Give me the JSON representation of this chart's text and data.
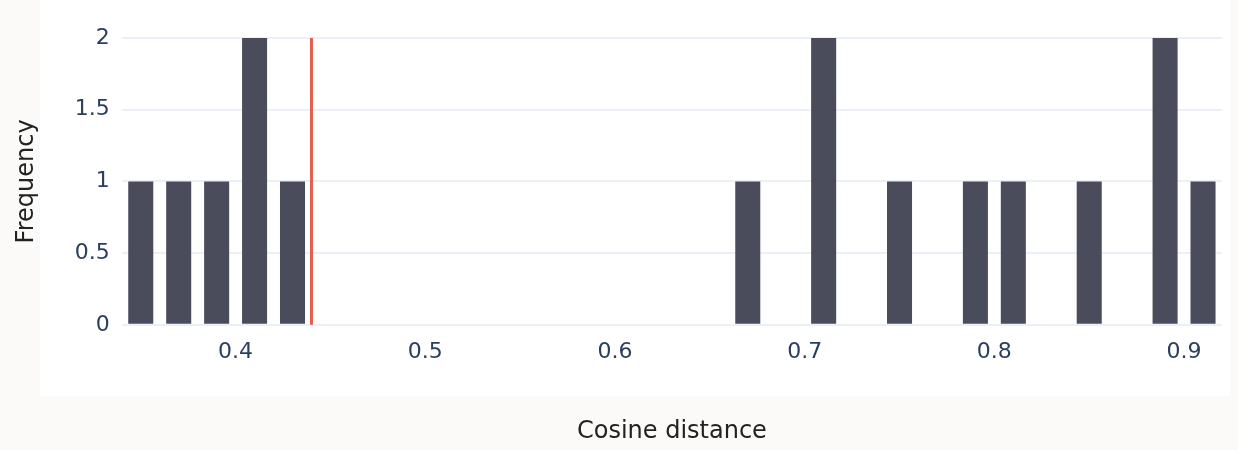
{
  "chart_data": {
    "type": "histogram",
    "xlabel": "Cosine distance",
    "ylabel": "Frequency",
    "bins": [
      0.34,
      0.36,
      0.38,
      0.4,
      0.42,
      0.44,
      0.46,
      0.48,
      0.5,
      0.52,
      0.54,
      0.56,
      0.58,
      0.6,
      0.62,
      0.64,
      0.66,
      0.68,
      0.7,
      0.72,
      0.74,
      0.76,
      0.78,
      0.8,
      0.82,
      0.84,
      0.86,
      0.88,
      0.9,
      0.92
    ],
    "values": [
      1,
      1,
      1,
      2,
      1,
      0,
      0,
      0,
      0,
      0,
      0,
      0,
      0,
      0,
      0,
      0,
      1,
      0,
      2,
      0,
      1,
      0,
      1,
      1,
      0,
      1,
      0,
      2,
      1
    ],
    "color": "#4a4c5c",
    "xlim": [
      0.34,
      0.92
    ],
    "xticks": [
      0.4,
      0.5,
      0.6,
      0.7,
      0.8,
      0.9
    ],
    "ylim": [
      0,
      2
    ],
    "yticks": [
      0,
      0.5,
      1,
      1.5,
      2
    ],
    "grid": "y",
    "ref_lines": [
      {
        "axis": "x",
        "value": 0.44,
        "color": "#e4604e"
      }
    ]
  }
}
